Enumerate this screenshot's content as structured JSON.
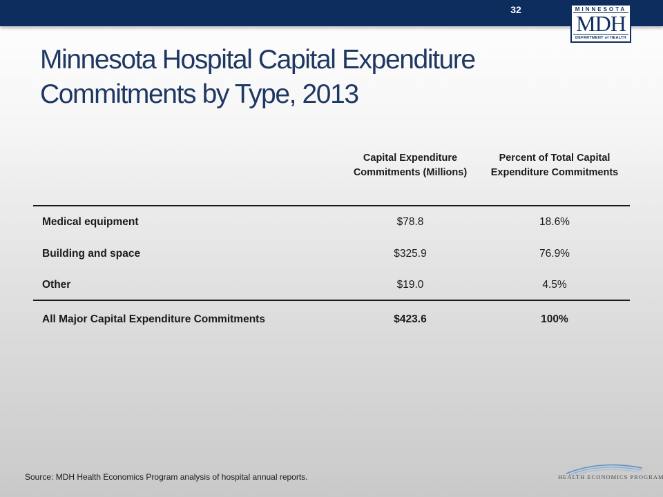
{
  "slide": {
    "number": "32"
  },
  "logo": {
    "top": "MINNESOTA",
    "main": "MDH",
    "bottom": "DEPARTMENT of HEALTH"
  },
  "title": "Minnesota Hospital Capital Expenditure Commitments by Type, 2013",
  "table": {
    "headers": [
      "",
      "Capital Expenditure Commitments (Millions)",
      "Percent of Total Capital Expenditure Commitments"
    ],
    "rows": [
      {
        "label": "Medical equipment",
        "value": "$78.8",
        "percent": "18.6%"
      },
      {
        "label": "Building and space",
        "value": "$325.9",
        "percent": "76.9%"
      },
      {
        "label": "Other",
        "value": "$19.0",
        "percent": "4.5%"
      },
      {
        "label": "All Major Capital Expenditure Commitments",
        "value": "$423.6",
        "percent": "100%"
      }
    ]
  },
  "source": "Source:  MDH Health Economics Program analysis of hospital annual reports.",
  "footer_logo": {
    "text": "HEALTH ECONOMICS PROGRAM"
  },
  "colors": {
    "banner": "#0d2d5e",
    "title": "#1f3863",
    "footer_arc": "#5b8fc7"
  }
}
